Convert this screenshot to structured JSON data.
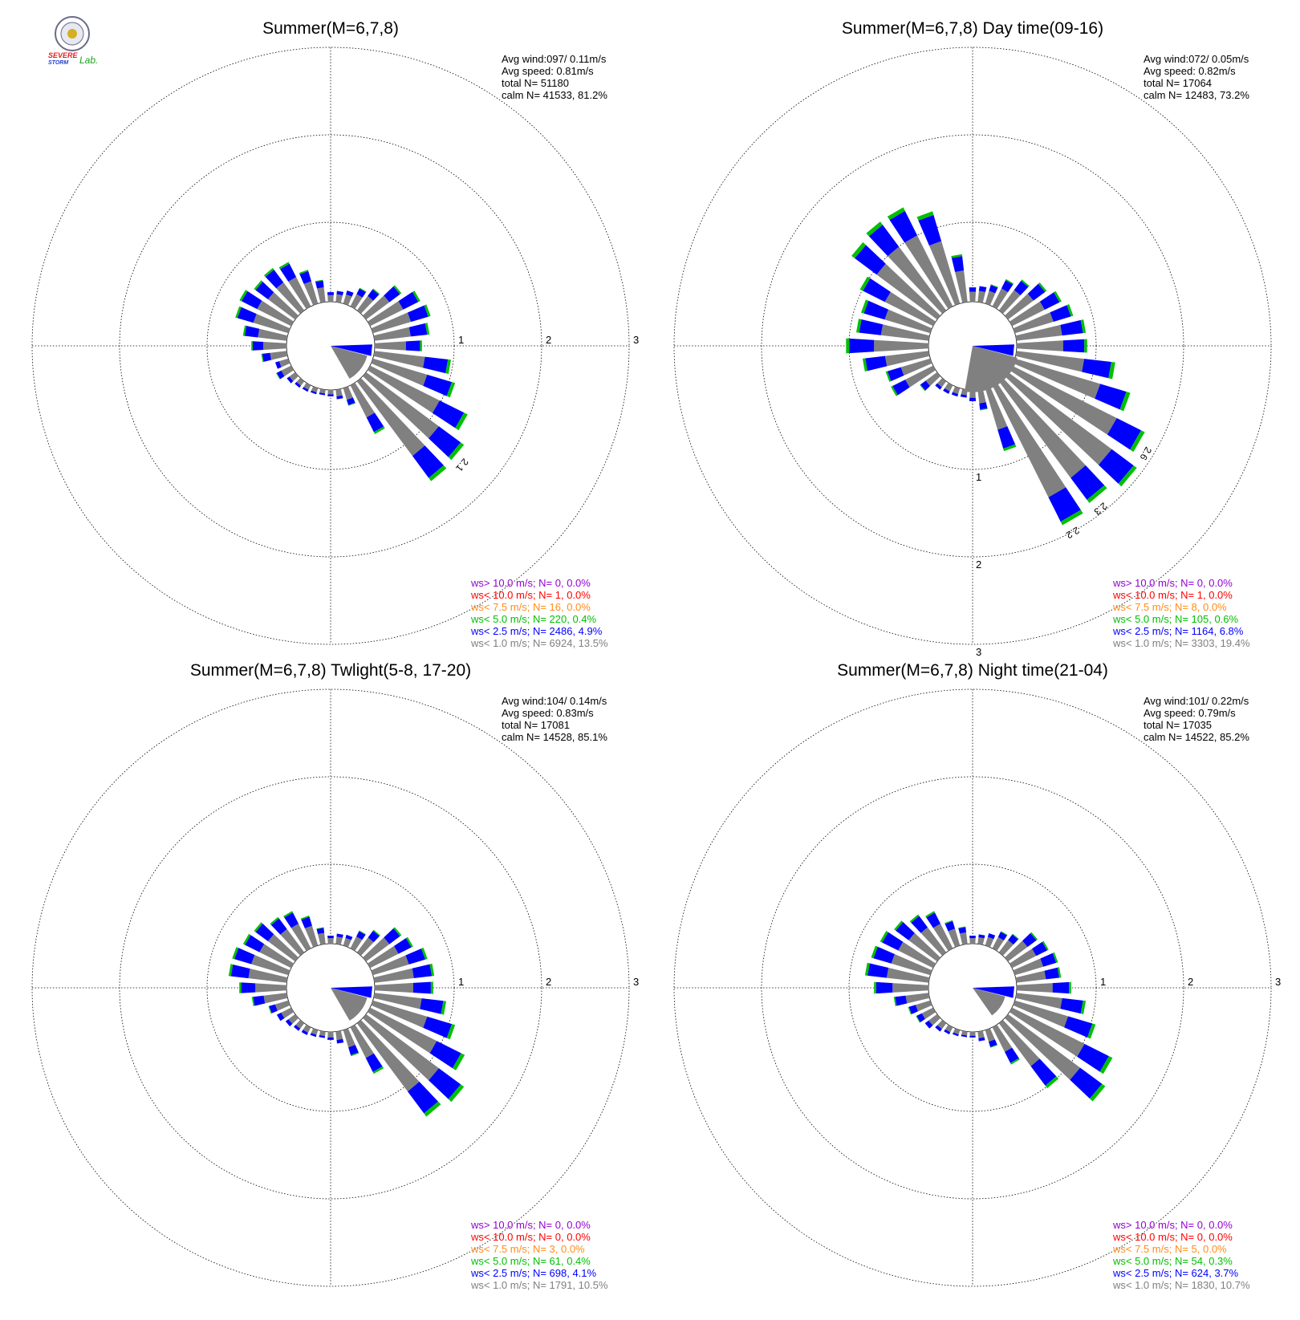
{
  "logo": {
    "line1": "SEVERE",
    "line2": "STORM",
    "line3": "Lab.",
    "colors": {
      "s1": "#e02020",
      "s2": "#2040d0",
      "lab": "#20a020",
      "seal": "#6a6a8a"
    }
  },
  "colors": {
    "calm_sector": "#808080",
    "ws_lt_1": "#808080",
    "ws_lt_2_5": "#0000ff",
    "ws_lt_5": "#00c000",
    "ws_lt_7_5": "#ff8c1a",
    "ws_lt_10": "#ff0000",
    "ws_gt_10": "#9400d3",
    "grid": "#000000"
  },
  "chart_data": [
    {
      "type": "windrose",
      "title": "Summer(M=6,7,8)",
      "stats": [
        "Avg wind:097/ 0.11m/s",
        "Avg speed: 0.81m/s",
        "total N=       51180",
        "calm N=  41533,  81.2%"
      ],
      "rings": [
        "1",
        "2",
        "3"
      ],
      "ring_label_bearing": 90,
      "ring_max": 3,
      "calm_sector": {
        "from": 105,
        "to": 150,
        "radius": 0.45
      },
      "bars": [
        [
          0,
          0.12
        ],
        [
          10,
          0.14
        ],
        [
          20,
          0.17
        ],
        [
          30,
          0.26
        ],
        [
          40,
          0.34
        ],
        [
          50,
          0.55
        ],
        [
          60,
          0.7
        ],
        [
          70,
          0.75
        ],
        [
          80,
          0.69
        ],
        [
          90,
          0.59
        ],
        [
          100,
          0.96
        ],
        [
          110,
          1.07
        ],
        [
          120,
          1.36
        ],
        [
          130,
          1.52
        ],
        [
          140,
          1.55
        ],
        [
          150,
          0.68
        ],
        [
          160,
          0.23
        ],
        [
          170,
          0.12
        ],
        [
          180,
          0.08
        ],
        [
          190,
          0.07
        ],
        [
          200,
          0.08
        ],
        [
          210,
          0.09
        ],
        [
          220,
          0.1
        ],
        [
          230,
          0.13
        ],
        [
          240,
          0.21
        ],
        [
          250,
          0.17
        ],
        [
          260,
          0.32
        ],
        [
          270,
          0.44
        ],
        [
          280,
          0.55
        ],
        [
          290,
          0.69
        ],
        [
          300,
          0.72
        ],
        [
          310,
          0.64
        ],
        [
          320,
          0.66
        ],
        [
          330,
          0.62
        ],
        [
          340,
          0.44
        ],
        [
          350,
          0.28
        ]
      ],
      "peak_labels": [
        {
          "bearing": 130,
          "text": "2.1"
        }
      ],
      "legend": [
        {
          "key": "ws_gt_10",
          "text": "ws> 10.0 m/s; N=     0,  0.0%"
        },
        {
          "key": "ws_lt_10",
          "text": "ws< 10.0 m/s; N=     1,  0.0%"
        },
        {
          "key": "ws_lt_7_5",
          "text": "ws<  7.5 m/s; N=    16,  0.0%"
        },
        {
          "key": "ws_lt_5",
          "text": "ws<  5.0 m/s; N=   220,  0.4%"
        },
        {
          "key": "ws_lt_2_5",
          "text": "ws<  2.5 m/s; N=  2486,  4.9%"
        },
        {
          "key": "ws_lt_1",
          "text": "ws<  1.0 m/s; N=  6924, 13.5%"
        }
      ]
    },
    {
      "type": "windrose",
      "title": "Summer(M=6,7,8) Day time(09-16)",
      "stats": [
        "Avg wind:072/ 0.05m/s",
        "Avg speed: 0.82m/s",
        "total N=       17064",
        "calm N=  12483,  73.2%"
      ],
      "rings": [
        "1",
        "2",
        "3"
      ],
      "ring_label_bearing": 180,
      "ring_max": 3,
      "calm_sector": {
        "from": 105,
        "to": 190,
        "radius": 0.55
      },
      "bars": [
        [
          0,
          0.18
        ],
        [
          10,
          0.2
        ],
        [
          20,
          0.25
        ],
        [
          30,
          0.38
        ],
        [
          40,
          0.48
        ],
        [
          50,
          0.6
        ],
        [
          60,
          0.69
        ],
        [
          70,
          0.76
        ],
        [
          80,
          0.87
        ],
        [
          90,
          0.88
        ],
        [
          100,
          1.24
        ],
        [
          110,
          1.5
        ],
        [
          120,
          1.85
        ],
        [
          130,
          2.0
        ],
        [
          140,
          1.89
        ],
        [
          150,
          1.95
        ],
        [
          160,
          0.82
        ],
        [
          170,
          0.26
        ],
        [
          180,
          0.14
        ],
        [
          190,
          0.1
        ],
        [
          200,
          0.11
        ],
        [
          210,
          0.12
        ],
        [
          220,
          0.13
        ],
        [
          230,
          0.27
        ],
        [
          240,
          0.59
        ],
        [
          250,
          0.58
        ],
        [
          260,
          0.83
        ],
        [
          270,
          1.03
        ],
        [
          280,
          0.91
        ],
        [
          290,
          0.9
        ],
        [
          300,
          1.02
        ],
        [
          310,
          1.33
        ],
        [
          320,
          1.38
        ],
        [
          330,
          1.38
        ],
        [
          340,
          1.2
        ],
        [
          350,
          0.6
        ]
      ],
      "peak_labels": [
        {
          "bearing": 120,
          "text": "2.6"
        },
        {
          "bearing": 140,
          "text": "2.3"
        },
        {
          "bearing": 150,
          "text": "2.2"
        }
      ],
      "legend": [
        {
          "key": "ws_gt_10",
          "text": "ws> 10.0 m/s; N=     0,  0.0%"
        },
        {
          "key": "ws_lt_10",
          "text": "ws< 10.0 m/s; N=     1,  0.0%"
        },
        {
          "key": "ws_lt_7_5",
          "text": "ws<  7.5 m/s; N=     8,  0.0%"
        },
        {
          "key": "ws_lt_5",
          "text": "ws<  5.0 m/s; N=   105,  0.6%"
        },
        {
          "key": "ws_lt_2_5",
          "text": "ws<  2.5 m/s; N=  1164,  6.8%"
        },
        {
          "key": "ws_lt_1",
          "text": "ws<  1.0 m/s; N=  3303, 19.4%"
        }
      ]
    },
    {
      "type": "windrose",
      "title": "Summer(M=6,7,8) Twlight(5-8, 17-20)",
      "stats": [
        "Avg wind:104/ 0.14m/s",
        "Avg speed: 0.83m/s",
        "total N=       17081",
        "calm N=  14528,  85.1%"
      ],
      "rings": [
        "1",
        "2",
        "3"
      ],
      "ring_label_bearing": 90,
      "ring_max": 3,
      "calm_sector": {
        "from": 105,
        "to": 150,
        "radius": 0.45
      },
      "bars": [
        [
          0,
          0.1
        ],
        [
          10,
          0.13
        ],
        [
          20,
          0.14
        ],
        [
          30,
          0.25
        ],
        [
          40,
          0.35
        ],
        [
          50,
          0.55
        ],
        [
          60,
          0.6
        ],
        [
          70,
          0.71
        ],
        [
          80,
          0.75
        ],
        [
          90,
          0.73
        ],
        [
          100,
          0.9
        ],
        [
          110,
          1.07
        ],
        [
          120,
          1.32
        ],
        [
          130,
          1.52
        ],
        [
          140,
          1.45
        ],
        [
          150,
          0.65
        ],
        [
          160,
          0.34
        ],
        [
          170,
          0.15
        ],
        [
          180,
          0.1
        ],
        [
          190,
          0.08
        ],
        [
          200,
          0.09
        ],
        [
          210,
          0.11
        ],
        [
          220,
          0.12
        ],
        [
          230,
          0.15
        ],
        [
          240,
          0.2
        ],
        [
          250,
          0.26
        ],
        [
          260,
          0.44
        ],
        [
          270,
          0.59
        ],
        [
          280,
          0.73
        ],
        [
          290,
          0.73
        ],
        [
          300,
          0.67
        ],
        [
          310,
          0.64
        ],
        [
          320,
          0.55
        ],
        [
          330,
          0.52
        ],
        [
          340,
          0.39
        ],
        [
          350,
          0.21
        ]
      ],
      "peak_labels": [],
      "legend": [
        {
          "key": "ws_gt_10",
          "text": "ws> 10.0 m/s; N=     0,  0.0%"
        },
        {
          "key": "ws_lt_10",
          "text": "ws< 10.0 m/s; N=     0,  0.0%"
        },
        {
          "key": "ws_lt_7_5",
          "text": "ws<  7.5 m/s; N=     3,  0.0%"
        },
        {
          "key": "ws_lt_5",
          "text": "ws<  5.0 m/s; N=    61,  0.4%"
        },
        {
          "key": "ws_lt_2_5",
          "text": "ws<  2.5 m/s; N=   698,  4.1%"
        },
        {
          "key": "ws_lt_1",
          "text": "ws<  1.0 m/s; N=  1791, 10.5%"
        }
      ]
    },
    {
      "type": "windrose",
      "title": "Summer(M=6,7,8) Night time(21-04)",
      "stats": [
        "Avg wind:101/ 0.22m/s",
        "Avg speed: 0.79m/s",
        "total N=       17035",
        "calm N=  14522,  85.2%"
      ],
      "rings": [
        "1",
        "2",
        "3"
      ],
      "ring_label_bearing": 90,
      "ring_max": 3,
      "calm_sector": {
        "from": 105,
        "to": 145,
        "radius": 0.4
      },
      "bars": [
        [
          0,
          0.1
        ],
        [
          10,
          0.12
        ],
        [
          20,
          0.16
        ],
        [
          30,
          0.24
        ],
        [
          40,
          0.29
        ],
        [
          50,
          0.46
        ],
        [
          60,
          0.51
        ],
        [
          70,
          0.56
        ],
        [
          80,
          0.56
        ],
        [
          90,
          0.68
        ],
        [
          100,
          0.87
        ],
        [
          110,
          1.05
        ],
        [
          120,
          1.4
        ],
        [
          130,
          1.51
        ],
        [
          140,
          1.01
        ],
        [
          150,
          0.52
        ],
        [
          160,
          0.23
        ],
        [
          170,
          0.12
        ],
        [
          180,
          0.07
        ],
        [
          190,
          0.07
        ],
        [
          200,
          0.08
        ],
        [
          210,
          0.1
        ],
        [
          220,
          0.13
        ],
        [
          230,
          0.19
        ],
        [
          240,
          0.24
        ],
        [
          250,
          0.29
        ],
        [
          260,
          0.44
        ],
        [
          270,
          0.68
        ],
        [
          280,
          0.8
        ],
        [
          290,
          0.77
        ],
        [
          300,
          0.74
        ],
        [
          310,
          0.67
        ],
        [
          320,
          0.59
        ],
        [
          330,
          0.52
        ],
        [
          340,
          0.33
        ],
        [
          350,
          0.22
        ]
      ],
      "peak_labels": [],
      "legend": [
        {
          "key": "ws_gt_10",
          "text": "ws> 10.0 m/s; N=     0,  0.0%"
        },
        {
          "key": "ws_lt_10",
          "text": "ws< 10.0 m/s; N=     0,  0.0%"
        },
        {
          "key": "ws_lt_7_5",
          "text": "ws<  7.5 m/s; N=     5,  0.0%"
        },
        {
          "key": "ws_lt_5",
          "text": "ws<  5.0 m/s; N=    54,  0.3%"
        },
        {
          "key": "ws_lt_2_5",
          "text": "ws<  2.5 m/s; N=   624,  3.7%"
        },
        {
          "key": "ws_lt_1",
          "text": "ws<  1.0 m/s; N=  1830, 10.7%"
        }
      ]
    }
  ]
}
